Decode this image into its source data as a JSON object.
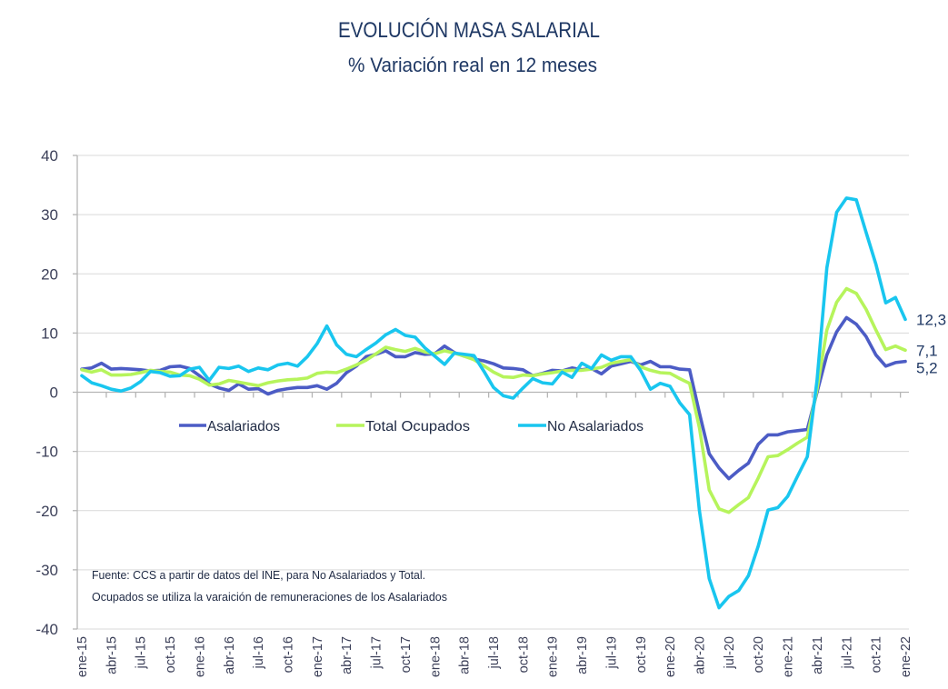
{
  "chart_data": {
    "type": "line",
    "title": "EVOLUCIÓN MASA SALARIAL",
    "subtitle": "% Variación real en 12 meses",
    "xlabel": "",
    "ylabel": "",
    "x_start": "ene-15",
    "x_end": "ene-22",
    "frequency": "monthly",
    "x_tick_labels": [
      "ene-15",
      "abr-15",
      "jul-15",
      "oct-15",
      "ene-16",
      "abr-16",
      "jul-16",
      "oct-16",
      "ene-17",
      "abr-17",
      "jul-17",
      "oct-17",
      "ene-18",
      "abr-18",
      "jul-18",
      "oct-18",
      "ene-19",
      "abr-19",
      "jul-19",
      "oct-19",
      "ene-20",
      "abr-20",
      "jul-20",
      "oct-20",
      "ene-21",
      "abr-21",
      "jul-21",
      "oct-21",
      "ene-22"
    ],
    "ylim": [
      -40,
      40
    ],
    "yticks": [
      40,
      30,
      20,
      10,
      0,
      -10,
      -20,
      -30,
      -40
    ],
    "grid": true,
    "legend_position": "center-inside",
    "series": [
      {
        "name": "Asalariados",
        "color": "#4c5cc5",
        "values": [
          3.9,
          4.1,
          4.9,
          3.9,
          4.0,
          3.9,
          3.8,
          3.6,
          3.7,
          4.3,
          4.4,
          4.0,
          2.8,
          1.4,
          0.7,
          0.3,
          1.4,
          0.5,
          0.6,
          -0.3,
          0.3,
          0.6,
          0.8,
          0.8,
          1.1,
          0.5,
          1.5,
          3.3,
          4.4,
          6.0,
          6.4,
          7.0,
          6.0,
          6.0,
          6.7,
          6.4,
          6.5,
          7.8,
          6.7,
          6.1,
          5.6,
          5.3,
          4.8,
          4.1,
          4.0,
          3.8,
          2.8,
          3.2,
          3.7,
          3.6,
          4.1,
          3.8,
          4.0,
          3.1,
          4.4,
          4.8,
          5.2,
          4.6,
          5.2,
          4.3,
          4.3,
          3.9,
          3.8,
          -3.5,
          -10.4,
          -12.8,
          -14.6,
          -13.2,
          -12.0,
          -8.8,
          -7.2,
          -7.2,
          -6.7,
          -6.5,
          -6.3,
          0.0,
          6.3,
          10.2,
          12.6,
          11.5,
          9.4,
          6.3,
          4.4,
          5.0,
          5.2
        ]
      },
      {
        "name": "Total Ocupados",
        "color": "#b6f45c",
        "values": [
          3.8,
          3.4,
          3.8,
          2.9,
          2.9,
          3.0,
          3.3,
          3.7,
          3.5,
          3.4,
          2.9,
          2.8,
          2.2,
          1.2,
          1.4,
          2.0,
          1.7,
          1.4,
          1.1,
          1.6,
          1.9,
          2.1,
          2.2,
          2.4,
          3.2,
          3.4,
          3.3,
          3.9,
          4.6,
          5.4,
          6.5,
          7.6,
          7.2,
          6.9,
          7.4,
          6.8,
          6.5,
          7.0,
          6.6,
          6.1,
          5.5,
          4.5,
          3.4,
          2.6,
          2.5,
          2.9,
          2.8,
          3.1,
          3.3,
          3.6,
          3.7,
          3.7,
          3.9,
          4.2,
          4.9,
          5.2,
          5.5,
          4.3,
          3.7,
          3.3,
          3.2,
          2.3,
          1.5,
          -6.0,
          -16.5,
          -19.7,
          -20.3,
          -19.0,
          -17.8,
          -14.5,
          -10.9,
          -10.7,
          -9.7,
          -8.6,
          -7.6,
          0.5,
          10.5,
          15.2,
          17.5,
          16.7,
          14.0,
          10.5,
          7.2,
          7.8,
          7.1
        ]
      },
      {
        "name": "No Asalariados",
        "color": "#19c6ef",
        "values": [
          2.8,
          1.6,
          1.1,
          0.5,
          0.2,
          0.7,
          1.8,
          3.5,
          3.3,
          2.7,
          2.8,
          3.9,
          4.2,
          2.0,
          4.2,
          4.0,
          4.4,
          3.5,
          4.1,
          3.8,
          4.6,
          4.9,
          4.4,
          6.0,
          8.2,
          11.2,
          8.0,
          6.4,
          6.0,
          7.2,
          8.3,
          9.7,
          10.6,
          9.6,
          9.3,
          7.5,
          6.1,
          4.7,
          6.6,
          6.4,
          6.2,
          3.6,
          0.8,
          -0.6,
          -1.0,
          0.7,
          2.3,
          1.6,
          1.4,
          3.4,
          2.5,
          4.9,
          4.0,
          6.3,
          5.4,
          6.0,
          6.0,
          3.7,
          0.5,
          1.5,
          1.0,
          -1.8,
          -3.8,
          -20.0,
          -31.5,
          -36.4,
          -34.5,
          -33.5,
          -31.0,
          -26.0,
          -19.9,
          -19.5,
          -17.6,
          -14.2,
          -10.9,
          2.0,
          21.0,
          30.4,
          32.8,
          32.5,
          27.0,
          21.6,
          15.1,
          16.0,
          12.3
        ]
      }
    ],
    "end_labels": [
      {
        "series": "No Asalariados",
        "text": "12,3"
      },
      {
        "series": "Total Ocupados",
        "text": "7,1"
      },
      {
        "series": "Asalariados",
        "text": "5,2"
      }
    ],
    "annotations": [
      "Fuente: CCS a partir de datos del INE, para No Asalariados y Total.",
      "Ocupados se utiliza la varaición de remuneraciones de los Asalariados"
    ]
  }
}
